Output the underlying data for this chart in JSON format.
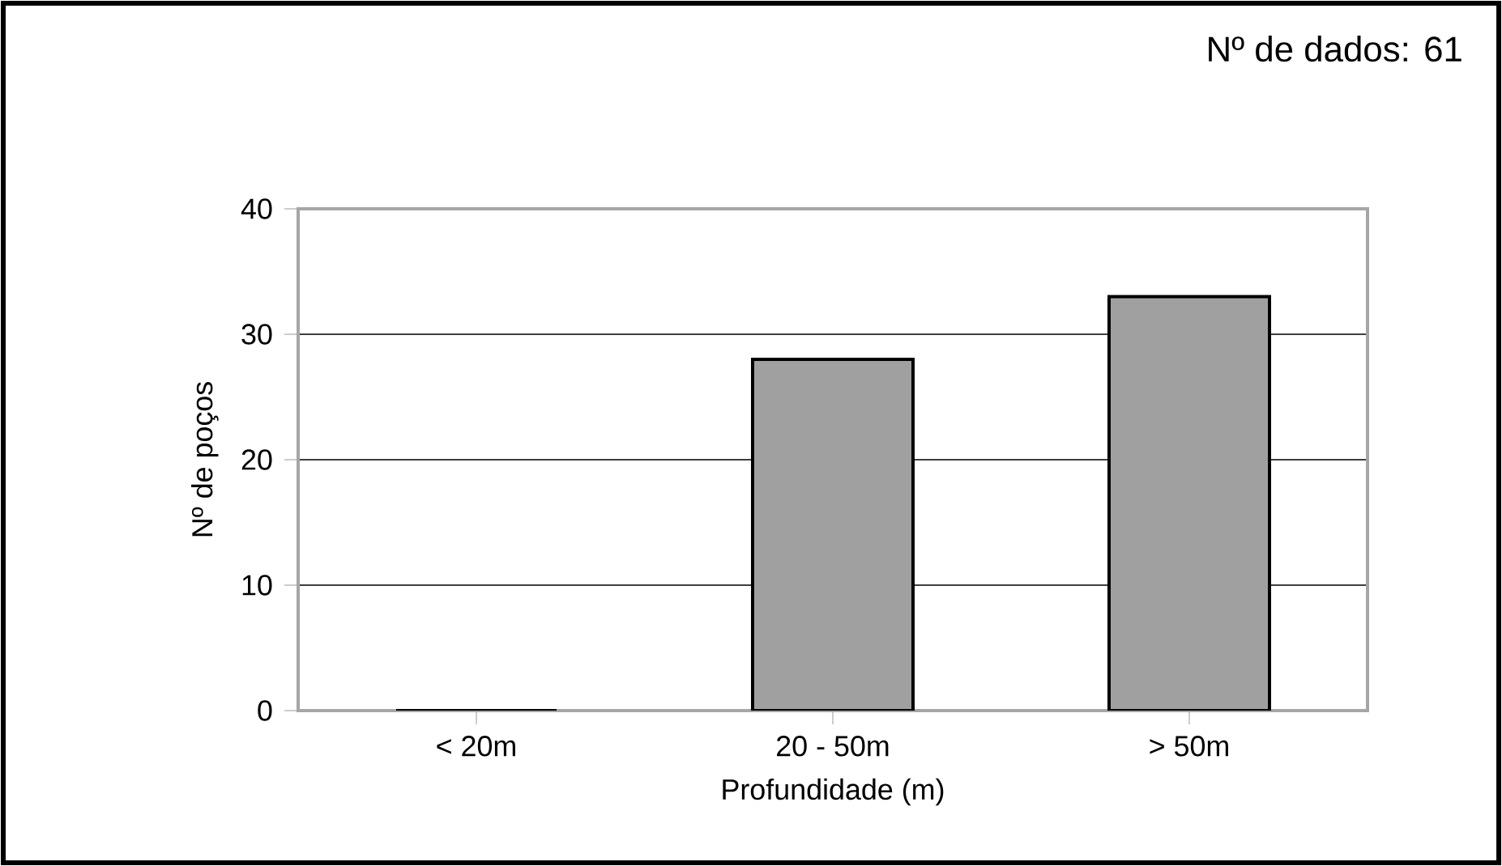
{
  "chart_data": {
    "type": "bar",
    "xlabel": "Profundidade (m)",
    "ylabel": "Nº de poços",
    "annotations": [
      "Nº de dados: 61"
    ],
    "categories": [
      "< 20m",
      "20 - 50m",
      "> 50m"
    ],
    "values": [
      0,
      28,
      33
    ],
    "color": "#a0a0a0",
    "ylim": [
      0,
      40
    ],
    "yticks": [
      0,
      10,
      20,
      30,
      40
    ],
    "grid": "y"
  }
}
